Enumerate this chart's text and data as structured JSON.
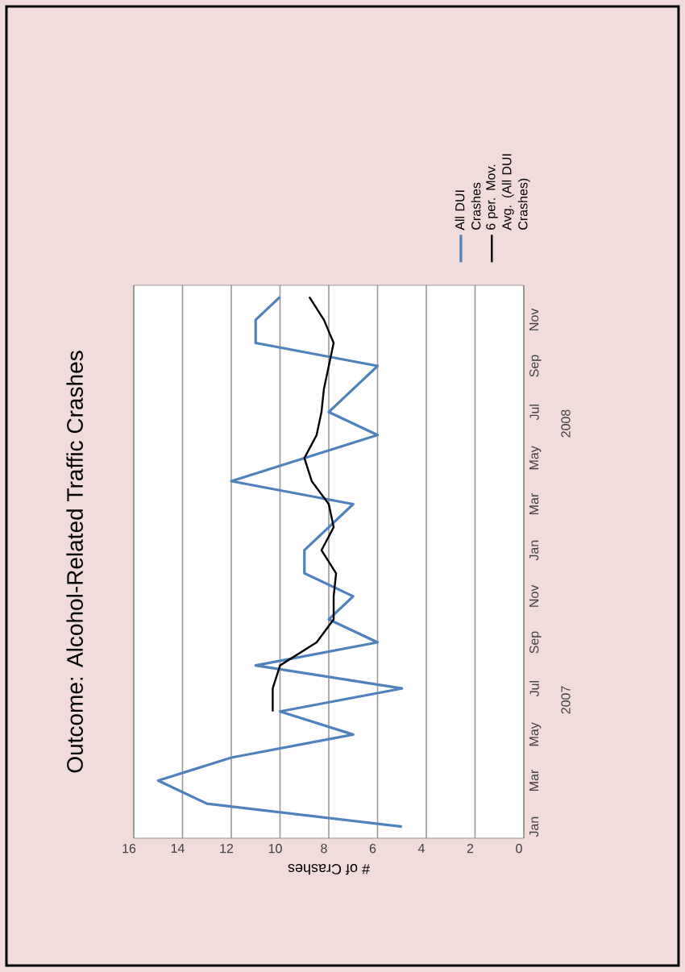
{
  "chart_data": {
    "type": "line",
    "orientation": "horizontal",
    "title": "Outcome: Alcohol-Related Traffic Crashes",
    "xlabel": "# of Crashes",
    "categories": [
      null,
      "Nov",
      null,
      "Sep",
      null,
      "Jul",
      null,
      "May",
      null,
      "Mar",
      null,
      "Jan",
      null,
      "Nov",
      null,
      "Sep",
      null,
      "Jul",
      null,
      "May",
      null,
      "Mar",
      null,
      "Jan"
    ],
    "series": [
      {
        "name": "All DUI Crashes",
        "color": "#4f81bd",
        "values": [
          10,
          11,
          11,
          6,
          7,
          8,
          6,
          9,
          12,
          7,
          8,
          9,
          9,
          7,
          8,
          6,
          11,
          5,
          10,
          7,
          12,
          15,
          13,
          5
        ]
      },
      {
        "name": "6 per. Mov. Avg. (All DUI Crashes)",
        "color": "#000000",
        "values": [
          8.8,
          8.2,
          7.8,
          8.0,
          8.2,
          8.3,
          8.5,
          9.0,
          8.7,
          8.0,
          7.8,
          8.3,
          7.7,
          7.8,
          7.8,
          8.5,
          10.0,
          10.3,
          10.3,
          null,
          null,
          null,
          null,
          null
        ]
      }
    ],
    "annotations": [
      "2008",
      "2007"
    ],
    "xlim": [
      16,
      0
    ],
    "xticks": [
      16,
      14,
      12,
      10,
      8,
      6,
      4,
      2,
      0
    ],
    "grid": "x",
    "legend": "top"
  }
}
